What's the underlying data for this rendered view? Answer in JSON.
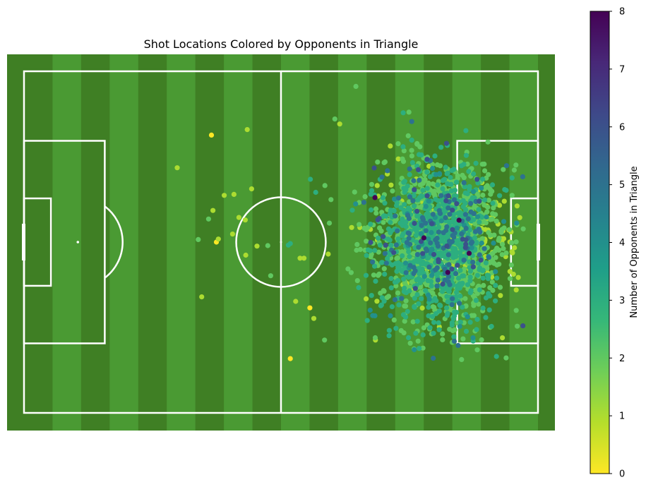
{
  "chart_data": {
    "type": "scatter",
    "title": "Shot Locations Colored by Opponents in Triangle",
    "xlabel": "",
    "ylabel": "",
    "pitch": {
      "length": 105,
      "width": 68,
      "stripes": 18,
      "grass_light": "#4a9a33",
      "grass_dark": "#3f7f24",
      "line_color": "#ffffff"
    },
    "xlim": [
      -3.5,
      105
    ],
    "ylim": [
      -3.5,
      71.5
    ],
    "grid": false,
    "colorbar": {
      "label": "Number of Opponents in Triangle",
      "range": [
        0,
        8
      ],
      "ticks": [
        "0",
        "1",
        "2",
        "3",
        "4",
        "5",
        "6",
        "7",
        "8"
      ],
      "colormap": "viridis",
      "colors": [
        "#fde725",
        "#b5de2b",
        "#6ece58",
        "#35b779",
        "#1f9e89",
        "#26828e",
        "#31688e",
        "#3e4989",
        "#482878",
        "#440154"
      ]
    },
    "cluster": {
      "description_count": 2000,
      "center": [
        85,
        34
      ],
      "spread": [
        6.5,
        8
      ]
    },
    "outliers": [
      {
        "x": 67.8,
        "y": 65.0,
        "v": 2
      },
      {
        "x": 63.5,
        "y": 58.5,
        "v": 2
      },
      {
        "x": 64.5,
        "y": 57.5,
        "v": 1
      },
      {
        "x": 45.6,
        "y": 56.4,
        "v": 1
      },
      {
        "x": 38.3,
        "y": 55.3,
        "v": 0
      },
      {
        "x": 31.3,
        "y": 48.8,
        "v": 1
      },
      {
        "x": 46.5,
        "y": 44.6,
        "v": 1
      },
      {
        "x": 40.9,
        "y": 43.3,
        "v": 1
      },
      {
        "x": 42.9,
        "y": 43.5,
        "v": 1
      },
      {
        "x": 38.6,
        "y": 40.3,
        "v": 1
      },
      {
        "x": 43.9,
        "y": 38.9,
        "v": 1
      },
      {
        "x": 37.7,
        "y": 38.6,
        "v": 2
      },
      {
        "x": 45.2,
        "y": 38.4,
        "v": 1
      },
      {
        "x": 42.6,
        "y": 35.6,
        "v": 1
      },
      {
        "x": 35.6,
        "y": 34.5,
        "v": 2
      },
      {
        "x": 39.3,
        "y": 34.0,
        "v": 0
      },
      {
        "x": 39.7,
        "y": 34.6,
        "v": 1
      },
      {
        "x": 54.4,
        "y": 33.7,
        "v": 3
      },
      {
        "x": 49.8,
        "y": 33.3,
        "v": 2
      },
      {
        "x": 47.6,
        "y": 33.2,
        "v": 1
      },
      {
        "x": 54.0,
        "y": 33.4,
        "v": 3
      },
      {
        "x": 45.3,
        "y": 31.4,
        "v": 1
      },
      {
        "x": 56.4,
        "y": 30.8,
        "v": 1
      },
      {
        "x": 57.2,
        "y": 30.8,
        "v": 1
      },
      {
        "x": 50.4,
        "y": 27.3,
        "v": 2
      },
      {
        "x": 36.3,
        "y": 23.1,
        "v": 1
      },
      {
        "x": 55.5,
        "y": 22.2,
        "v": 1
      },
      {
        "x": 58.4,
        "y": 20.9,
        "v": 0
      },
      {
        "x": 59.2,
        "y": 18.8,
        "v": 1
      },
      {
        "x": 61.4,
        "y": 14.5,
        "v": 2
      },
      {
        "x": 54.4,
        "y": 10.8,
        "v": 0
      },
      {
        "x": 71.8,
        "y": 14.5,
        "v": 1
      },
      {
        "x": 69.9,
        "y": 22.7,
        "v": 1
      },
      {
        "x": 58.5,
        "y": 46.5,
        "v": 3
      },
      {
        "x": 59.6,
        "y": 43.9,
        "v": 3
      }
    ]
  }
}
